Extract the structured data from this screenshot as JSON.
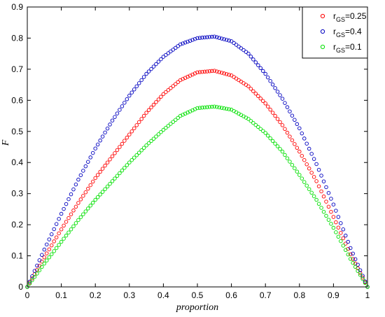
{
  "chart_data": {
    "type": "scatter",
    "title": "",
    "xlabel": "proportion",
    "ylabel": "F",
    "xlim": [
      0,
      1
    ],
    "ylim": [
      0,
      0.9
    ],
    "xticks": [
      "0",
      "0.1",
      "0.2",
      "0.3",
      "0.4",
      "0.5",
      "0.6",
      "0.7",
      "0.8",
      "0.9",
      "1"
    ],
    "yticks": [
      "0",
      "0.1",
      "0.2",
      "0.3",
      "0.4",
      "0.5",
      "0.6",
      "0.7",
      "0.8",
      "0.9"
    ],
    "grid": false,
    "legend_position": "top-right",
    "marker": "open-circle",
    "series": [
      {
        "name_main": "r",
        "name_sub": "GS",
        "name_suffix": "=0.25",
        "color": "#ff0000",
        "x": [
          0,
          0.05,
          0.1,
          0.15,
          0.2,
          0.25,
          0.3,
          0.35,
          0.4,
          0.45,
          0.5,
          0.55,
          0.6,
          0.65,
          0.7,
          0.75,
          0.8,
          0.85,
          0.9,
          0.95,
          1
        ],
        "y": [
          0,
          0.095,
          0.185,
          0.27,
          0.35,
          0.42,
          0.49,
          0.56,
          0.62,
          0.665,
          0.69,
          0.695,
          0.68,
          0.645,
          0.59,
          0.52,
          0.435,
          0.34,
          0.225,
          0.105,
          0
        ]
      },
      {
        "name_main": "r",
        "name_sub": "GS",
        "name_suffix": "=0.4",
        "color": "#0000c0",
        "x": [
          0,
          0.05,
          0.1,
          0.15,
          0.2,
          0.25,
          0.3,
          0.35,
          0.4,
          0.45,
          0.5,
          0.55,
          0.6,
          0.65,
          0.7,
          0.75,
          0.8,
          0.85,
          0.9,
          0.95,
          1
        ],
        "y": [
          0,
          0.12,
          0.235,
          0.345,
          0.445,
          0.535,
          0.615,
          0.685,
          0.74,
          0.78,
          0.8,
          0.805,
          0.79,
          0.75,
          0.685,
          0.605,
          0.51,
          0.395,
          0.265,
          0.125,
          0
        ]
      },
      {
        "name_main": "r",
        "name_sub": "GS",
        "name_suffix": "=0.1",
        "color": "#00e000",
        "x": [
          0,
          0.05,
          0.1,
          0.15,
          0.2,
          0.25,
          0.3,
          0.35,
          0.4,
          0.45,
          0.5,
          0.55,
          0.6,
          0.65,
          0.7,
          0.75,
          0.8,
          0.85,
          0.9,
          0.95,
          1
        ],
        "y": [
          0,
          0.075,
          0.145,
          0.215,
          0.28,
          0.34,
          0.4,
          0.455,
          0.505,
          0.55,
          0.575,
          0.58,
          0.57,
          0.54,
          0.495,
          0.435,
          0.36,
          0.28,
          0.19,
          0.09,
          0
        ]
      }
    ]
  }
}
